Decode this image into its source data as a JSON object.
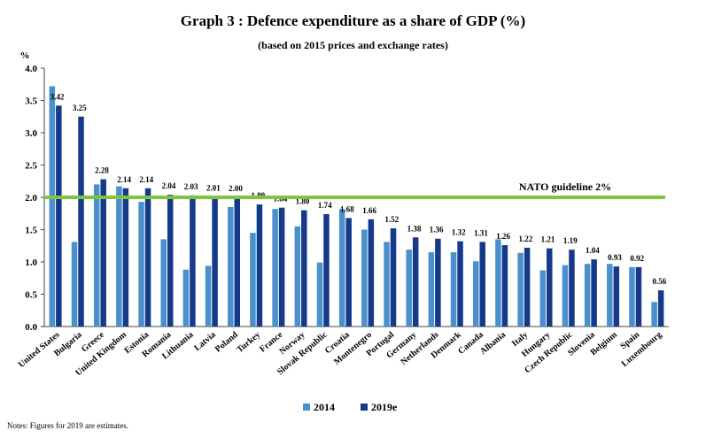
{
  "chart_data": {
    "type": "bar",
    "title": "Graph 3 : Defence expenditure as a share of GDP (%)",
    "subtitle": "(based on 2015 prices and exchange rates)",
    "ylabel": "%",
    "ylim": [
      0,
      4
    ],
    "yticks": [
      "0.0",
      "0.5",
      "1.0",
      "1.5",
      "2.0",
      "2.5",
      "3.0",
      "3.5",
      "4.0"
    ],
    "grid": false,
    "legend_position": "bottom",
    "categories": [
      "United States",
      "Bulgaria",
      "Greece",
      "United Kingdom",
      "Estonia",
      "Romania",
      "Lithuania",
      "Latvia",
      "Poland",
      "Turkey",
      "France",
      "Norway",
      "Slovak Republic",
      "Croatia",
      "Montenegro",
      "Portugal",
      "Germany",
      "Netherlands",
      "Denmark",
      "Canada",
      "Albania",
      "Italy",
      "Hungary",
      "Czech Republic",
      "Slovenia",
      "Belgium",
      "Spain",
      "Luxembourg"
    ],
    "series": [
      {
        "name": "2014",
        "color": "#4a90cc",
        "values": [
          3.72,
          1.31,
          2.2,
          2.17,
          1.93,
          1.35,
          0.88,
          0.94,
          1.85,
          1.45,
          1.82,
          1.55,
          0.99,
          1.82,
          1.5,
          1.31,
          1.19,
          1.15,
          1.15,
          1.01,
          1.35,
          1.14,
          0.87,
          0.95,
          0.97,
          0.97,
          0.92,
          0.38
        ]
      },
      {
        "name": "2019e",
        "color": "#163a8a",
        "values": [
          3.42,
          3.25,
          2.28,
          2.14,
          2.14,
          2.04,
          2.03,
          2.01,
          2.0,
          1.89,
          1.84,
          1.8,
          1.74,
          1.68,
          1.66,
          1.52,
          1.38,
          1.36,
          1.32,
          1.31,
          1.26,
          1.22,
          1.21,
          1.19,
          1.04,
          0.93,
          0.92,
          0.56
        ]
      }
    ],
    "data_labels": [
      "3.42",
      "3.25",
      "2.28",
      "2.14",
      "2.14",
      "2.04",
      "2.03",
      "2.01",
      "2.00",
      "1.89",
      "1.84",
      "1.80",
      "1.74",
      "1.68",
      "1.66",
      "1.52",
      "1.38",
      "1.36",
      "1.32",
      "1.31",
      "1.26",
      "1.22",
      "1.21",
      "1.19",
      "1.04",
      "0.93",
      "0.92",
      "0.56"
    ],
    "reference_line": {
      "value": 2.0,
      "label": "NATO guideline 2%",
      "color": "#7dc63c"
    }
  },
  "notes": "Notes: Figures for 2019 are estimates."
}
